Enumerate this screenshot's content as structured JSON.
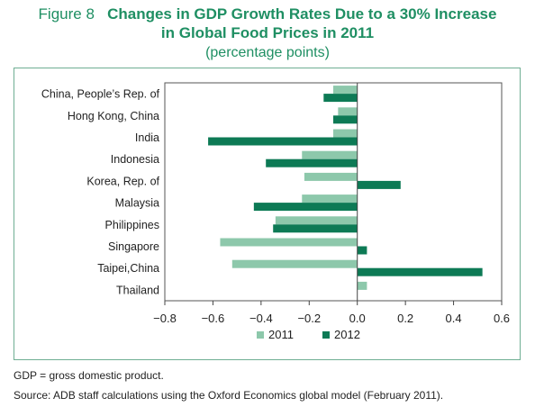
{
  "figure": {
    "label": "Figure 8",
    "title_line1": "Changes in GDP Growth Rates Due to a 30% Increase",
    "title_line2": "in Global Food Prices in 2011",
    "subtitle": "(percentage points)"
  },
  "notes": {
    "abbrev": "GDP = gross domestic product.",
    "source": "Source: ADB staff calculations using the Oxford Economics global model (February 2011)."
  },
  "colors": {
    "series_2011": "#8dc8ab",
    "series_2012": "#0d7a55",
    "frame": "#6fae93",
    "title": "#1f8f63"
  },
  "chart_data": {
    "type": "bar",
    "orientation": "horizontal",
    "categories": [
      "China, People’s Rep. of",
      "Hong Kong, China",
      "India",
      "Indonesia",
      "Korea, Rep. of",
      "Malaysia",
      "Philippines",
      "Singapore",
      "Taipei,China",
      "Thailand"
    ],
    "series": [
      {
        "name": "2011",
        "values": [
          -0.1,
          -0.08,
          -0.1,
          -0.23,
          -0.22,
          -0.23,
          -0.34,
          -0.57,
          -0.52,
          0.04
        ]
      },
      {
        "name": "2012",
        "values": [
          -0.14,
          -0.1,
          -0.62,
          -0.38,
          0.18,
          -0.43,
          -0.35,
          0.04,
          0.52,
          null
        ]
      }
    ],
    "xlim": [
      -0.8,
      0.6
    ],
    "xticks": [
      "−0.8",
      "−0.6",
      "−0.4",
      "−0.2",
      "0.0",
      "0.2",
      "0.4",
      "0.6"
    ],
    "xtick_values": [
      -0.8,
      -0.6,
      -0.4,
      -0.2,
      0.0,
      0.2,
      0.4,
      0.6
    ],
    "legend_position": "bottom",
    "grid": false
  }
}
